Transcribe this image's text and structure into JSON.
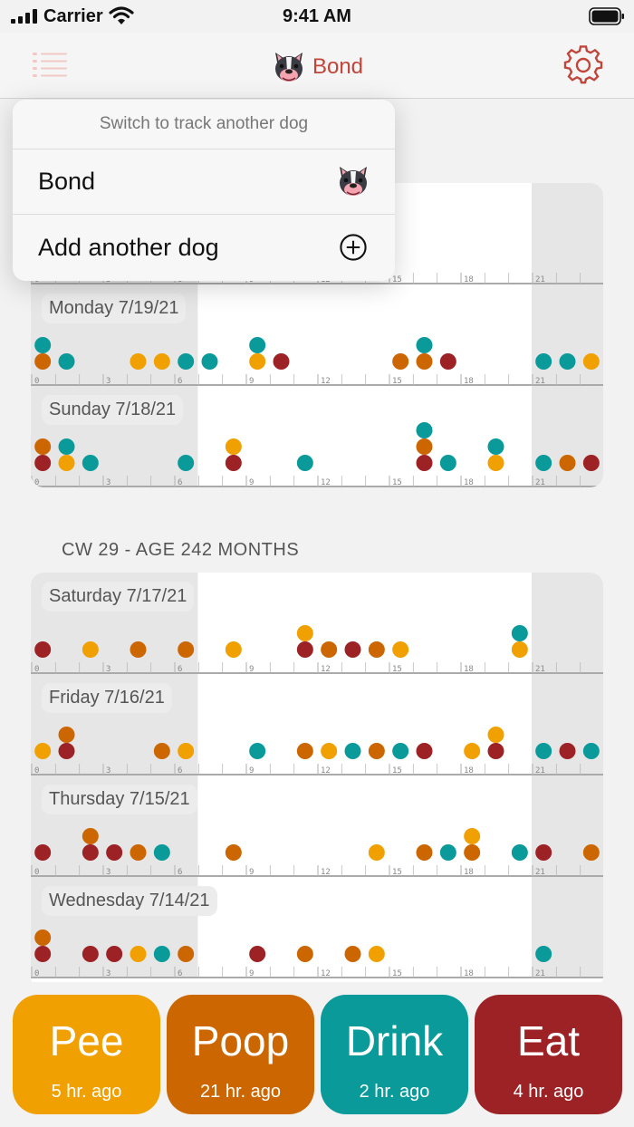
{
  "status_bar": {
    "carrier": "Carrier",
    "time": "9:41 AM"
  },
  "header": {
    "title": "Bond",
    "avatar_icon": "bulldog-face-icon",
    "menu_icon": "list-menu-icon",
    "settings_icon": "gear-icon"
  },
  "colors": {
    "pee": "#f0a000",
    "poop": "#cc6600",
    "drink": "#0a9a9a",
    "eat": "#9c2226",
    "accent": "#c0453b"
  },
  "dog_switcher": {
    "header": "Switch to track another dog",
    "items": [
      {
        "label": "Bond",
        "icon": "bulldog-face-icon"
      },
      {
        "label": "Add another dog",
        "icon": "plus-circle-icon"
      }
    ]
  },
  "hour_ticks": [
    "0",
    "3",
    "6",
    "9",
    "12",
    "15",
    "18",
    "21"
  ],
  "weeks": [
    {
      "title": "",
      "days": [
        {
          "label": "",
          "events": []
        },
        {
          "label": "Monday 7/19/21",
          "events": [
            {
              "t": 0.5,
              "type": "poop",
              "stack": 0
            },
            {
              "t": 0.5,
              "type": "drink",
              "stack": 1
            },
            {
              "t": 1.5,
              "type": "drink",
              "stack": 0
            },
            {
              "t": 4.5,
              "type": "pee",
              "stack": 0
            },
            {
              "t": 5.5,
              "type": "pee",
              "stack": 0
            },
            {
              "t": 6.5,
              "type": "drink",
              "stack": 0
            },
            {
              "t": 7.5,
              "type": "drink",
              "stack": 0
            },
            {
              "t": 9.5,
              "type": "pee",
              "stack": 0
            },
            {
              "t": 9.5,
              "type": "drink",
              "stack": 1
            },
            {
              "t": 10.5,
              "type": "eat",
              "stack": 0
            },
            {
              "t": 15.5,
              "type": "poop",
              "stack": 0
            },
            {
              "t": 16.5,
              "type": "poop",
              "stack": 0
            },
            {
              "t": 16.5,
              "type": "drink",
              "stack": 1
            },
            {
              "t": 17.5,
              "type": "eat",
              "stack": 0
            },
            {
              "t": 21.5,
              "type": "drink",
              "stack": 0
            },
            {
              "t": 22.5,
              "type": "drink",
              "stack": 0
            },
            {
              "t": 23.5,
              "type": "pee",
              "stack": 0
            }
          ]
        },
        {
          "label": "Sunday 7/18/21",
          "events": [
            {
              "t": 0.5,
              "type": "eat",
              "stack": 0
            },
            {
              "t": 0.5,
              "type": "poop",
              "stack": 1
            },
            {
              "t": 1.5,
              "type": "pee",
              "stack": 0
            },
            {
              "t": 1.5,
              "type": "drink",
              "stack": 1
            },
            {
              "t": 2.5,
              "type": "drink",
              "stack": 0
            },
            {
              "t": 6.5,
              "type": "drink",
              "stack": 0
            },
            {
              "t": 8.5,
              "type": "eat",
              "stack": 0
            },
            {
              "t": 8.5,
              "type": "pee",
              "stack": 1
            },
            {
              "t": 11.5,
              "type": "drink",
              "stack": 0
            },
            {
              "t": 16.5,
              "type": "eat",
              "stack": 0
            },
            {
              "t": 16.5,
              "type": "poop",
              "stack": 1
            },
            {
              "t": 16.5,
              "type": "drink",
              "stack": 2
            },
            {
              "t": 17.5,
              "type": "drink",
              "stack": 0
            },
            {
              "t": 19.5,
              "type": "pee",
              "stack": 0
            },
            {
              "t": 19.5,
              "type": "drink",
              "stack": 1
            },
            {
              "t": 21.5,
              "type": "drink",
              "stack": 0
            },
            {
              "t": 22.5,
              "type": "poop",
              "stack": 0
            },
            {
              "t": 23.5,
              "type": "eat",
              "stack": 0
            }
          ]
        }
      ]
    },
    {
      "title": "CW 29 - AGE 242 MONTHS",
      "days": [
        {
          "label": "Saturday 7/17/21",
          "events": [
            {
              "t": 0.5,
              "type": "eat",
              "stack": 0
            },
            {
              "t": 2.5,
              "type": "pee",
              "stack": 0
            },
            {
              "t": 4.5,
              "type": "poop",
              "stack": 0
            },
            {
              "t": 6.5,
              "type": "poop",
              "stack": 0
            },
            {
              "t": 8.5,
              "type": "pee",
              "stack": 0
            },
            {
              "t": 11.5,
              "type": "eat",
              "stack": 0
            },
            {
              "t": 11.5,
              "type": "pee",
              "stack": 1
            },
            {
              "t": 12.5,
              "type": "poop",
              "stack": 0
            },
            {
              "t": 13.5,
              "type": "eat",
              "stack": 0
            },
            {
              "t": 14.5,
              "type": "poop",
              "stack": 0
            },
            {
              "t": 15.5,
              "type": "pee",
              "stack": 0
            },
            {
              "t": 20.5,
              "type": "pee",
              "stack": 0
            },
            {
              "t": 20.5,
              "type": "drink",
              "stack": 1
            }
          ]
        },
        {
          "label": "Friday 7/16/21",
          "events": [
            {
              "t": 0.5,
              "type": "pee",
              "stack": 0
            },
            {
              "t": 1.5,
              "type": "eat",
              "stack": 0
            },
            {
              "t": 1.5,
              "type": "poop",
              "stack": 1
            },
            {
              "t": 5.5,
              "type": "poop",
              "stack": 0
            },
            {
              "t": 6.5,
              "type": "pee",
              "stack": 0
            },
            {
              "t": 9.5,
              "type": "drink",
              "stack": 0
            },
            {
              "t": 11.5,
              "type": "poop",
              "stack": 0
            },
            {
              "t": 12.5,
              "type": "pee",
              "stack": 0
            },
            {
              "t": 13.5,
              "type": "drink",
              "stack": 0
            },
            {
              "t": 14.5,
              "type": "poop",
              "stack": 0
            },
            {
              "t": 15.5,
              "type": "drink",
              "stack": 0
            },
            {
              "t": 16.5,
              "type": "eat",
              "stack": 0
            },
            {
              "t": 18.5,
              "type": "pee",
              "stack": 0
            },
            {
              "t": 19.5,
              "type": "eat",
              "stack": 0
            },
            {
              "t": 19.5,
              "type": "pee",
              "stack": 1
            },
            {
              "t": 21.5,
              "type": "drink",
              "stack": 0
            },
            {
              "t": 22.5,
              "type": "eat",
              "stack": 0
            },
            {
              "t": 23.5,
              "type": "drink",
              "stack": 0
            }
          ]
        },
        {
          "label": "Thursday 7/15/21",
          "events": [
            {
              "t": 0.5,
              "type": "eat",
              "stack": 0
            },
            {
              "t": 2.5,
              "type": "eat",
              "stack": 0
            },
            {
              "t": 2.5,
              "type": "poop",
              "stack": 1
            },
            {
              "t": 3.5,
              "type": "eat",
              "stack": 0
            },
            {
              "t": 4.5,
              "type": "poop",
              "stack": 0
            },
            {
              "t": 5.5,
              "type": "drink",
              "stack": 0
            },
            {
              "t": 8.5,
              "type": "poop",
              "stack": 0
            },
            {
              "t": 14.5,
              "type": "pee",
              "stack": 0
            },
            {
              "t": 16.5,
              "type": "poop",
              "stack": 0
            },
            {
              "t": 17.5,
              "type": "drink",
              "stack": 0
            },
            {
              "t": 18.5,
              "type": "poop",
              "stack": 0
            },
            {
              "t": 18.5,
              "type": "pee",
              "stack": 1
            },
            {
              "t": 20.5,
              "type": "drink",
              "stack": 0
            },
            {
              "t": 21.5,
              "type": "eat",
              "stack": 0
            },
            {
              "t": 23.5,
              "type": "poop",
              "stack": 0
            }
          ]
        },
        {
          "label": "Wednesday 7/14/21",
          "events": [
            {
              "t": 0.5,
              "type": "eat",
              "stack": 0
            },
            {
              "t": 0.5,
              "type": "poop",
              "stack": 1
            },
            {
              "t": 2.5,
              "type": "eat",
              "stack": 0
            },
            {
              "t": 3.5,
              "type": "eat",
              "stack": 0
            },
            {
              "t": 4.5,
              "type": "pee",
              "stack": 0
            },
            {
              "t": 5.5,
              "type": "drink",
              "stack": 0
            },
            {
              "t": 6.5,
              "type": "poop",
              "stack": 0
            },
            {
              "t": 9.5,
              "type": "eat",
              "stack": 0
            },
            {
              "t": 11.5,
              "type": "poop",
              "stack": 0
            },
            {
              "t": 13.5,
              "type": "poop",
              "stack": 0
            },
            {
              "t": 14.5,
              "type": "pee",
              "stack": 0
            },
            {
              "t": 21.5,
              "type": "drink",
              "stack": 0
            }
          ]
        }
      ]
    }
  ],
  "actions": [
    {
      "label": "Pee",
      "sub": "5 hr. ago",
      "color": "#f0a000"
    },
    {
      "label": "Poop",
      "sub": "21 hr. ago",
      "color": "#cc6600"
    },
    {
      "label": "Drink",
      "sub": "2 hr. ago",
      "color": "#0a9a9a"
    },
    {
      "label": "Eat",
      "sub": "4 hr. ago",
      "color": "#9c2226"
    }
  ]
}
